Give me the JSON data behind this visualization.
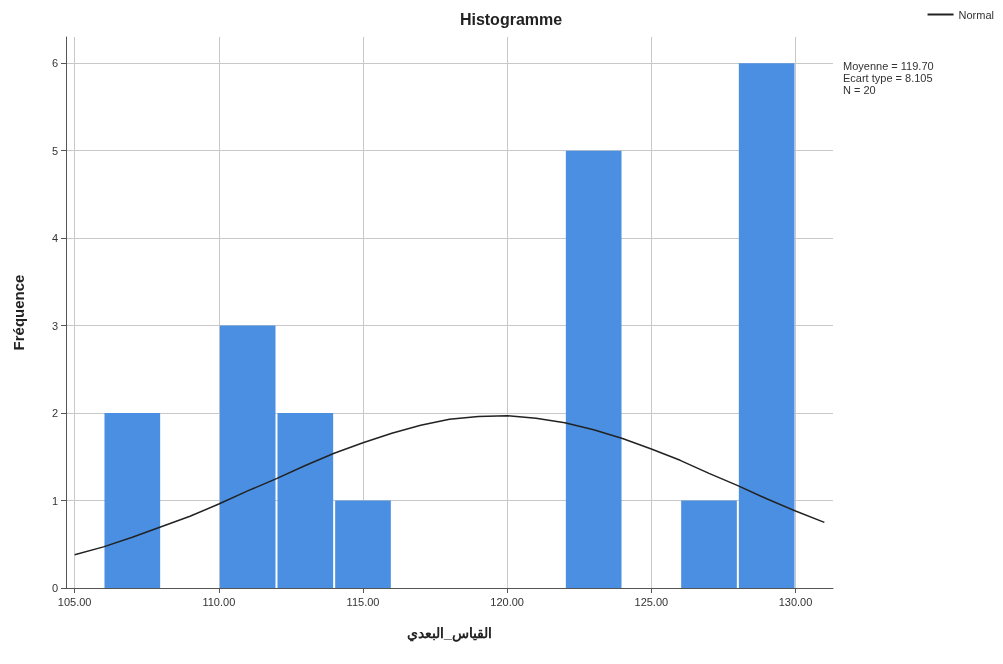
{
  "chart_data": {
    "type": "histogram",
    "title": "Histogramme",
    "xlabel": "القياس_البعدي",
    "ylabel": "Fréquence",
    "bins": [
      106,
      108,
      110,
      112,
      114,
      116,
      118,
      120,
      122,
      124,
      126,
      128,
      130
    ],
    "series": [
      {
        "color": "#4a8fe2",
        "values": [
          2,
          0,
          3,
          2,
          1,
          0,
          0,
          0,
          5,
          0,
          1,
          6
        ]
      },
      {
        "type": "line",
        "name": "Normal",
        "color": "#222222",
        "x": [
          105,
          106,
          107,
          108,
          109,
          110,
          111,
          112,
          113,
          114,
          115,
          116,
          117,
          118,
          119,
          120,
          121,
          122,
          123,
          124,
          125,
          126,
          127,
          128,
          129,
          130,
          131
        ],
        "values": [
          0.38,
          0.47,
          0.58,
          0.7,
          0.82,
          0.96,
          1.11,
          1.25,
          1.4,
          1.54,
          1.66,
          1.77,
          1.86,
          1.93,
          1.96,
          1.97,
          1.94,
          1.89,
          1.81,
          1.71,
          1.59,
          1.46,
          1.31,
          1.17,
          1.02,
          0.88,
          0.75
        ]
      }
    ],
    "xlim": [
      104.7,
      131.3
    ],
    "xticks": [
      {
        "value": 105,
        "label": "105.00"
      },
      {
        "value": 110,
        "label": "110.00"
      },
      {
        "value": 115,
        "label": "115.00"
      },
      {
        "value": 120,
        "label": "120.00"
      },
      {
        "value": 125,
        "label": "125.00"
      },
      {
        "value": 130,
        "label": "130.00"
      }
    ],
    "ylim": [
      0,
      6.3
    ],
    "yticks": [
      0,
      1,
      2,
      3,
      4,
      5,
      6
    ],
    "grid": true,
    "legend": "top right",
    "marker": "none",
    "line_style": "solid",
    "annotations": [
      "Moyenne = 119.70",
      "Ecart type = 8.105",
      "N = 20"
    ]
  }
}
